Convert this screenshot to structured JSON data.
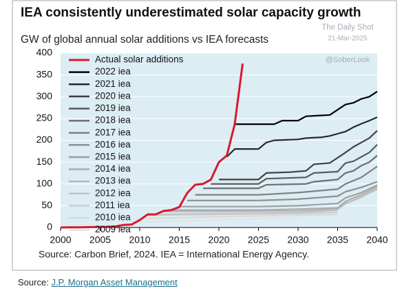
{
  "chart_data": {
    "type": "line",
    "title": "IEA consistently underestimated solar capacity growth",
    "subtitle": "GW of global annual solar additions vs IEA forecasts",
    "annotations": [
      "The Daily Shot",
      "21-Mar-2025",
      "@SoberLook"
    ],
    "source": "Source: Carbon Brief, 2024. IEA = International Energy Agency.",
    "xlim": [
      2000,
      2040
    ],
    "xticks": [
      2000,
      2005,
      2010,
      2015,
      2020,
      2025,
      2030,
      2035,
      2040
    ],
    "ylim": [
      0,
      400
    ],
    "yticks": [
      0,
      50,
      100,
      150,
      200,
      250,
      300,
      350,
      400
    ],
    "grid": true,
    "legend": "top-left",
    "series": [
      {
        "name": "Actual solar additions",
        "color": "#d7192e",
        "x": [
          2000,
          2001,
          2002,
          2003,
          2004,
          2005,
          2006,
          2007,
          2008,
          2009,
          2010,
          2011,
          2012,
          2013,
          2014,
          2015,
          2016,
          2017,
          2018,
          2019,
          2020,
          2021,
          2022,
          2023
        ],
        "values": [
          0,
          0.3,
          0.5,
          0.6,
          1,
          1.4,
          1.6,
          2.5,
          6,
          7,
          17,
          30,
          30,
          38,
          40,
          47,
          79,
          98,
          100,
          110,
          150,
          165,
          237,
          376
        ]
      },
      {
        "name": "2022 iea",
        "color": "#000000",
        "x": [
          2022,
          2027,
          2028,
          2030,
          2031,
          2033,
          2034,
          2035,
          2036,
          2037,
          2038,
          2039,
          2040
        ],
        "values": [
          237,
          237,
          245,
          245,
          255,
          257,
          258,
          270,
          282,
          286,
          295,
          300,
          312
        ]
      },
      {
        "name": "2021 iea",
        "color": "#262626",
        "x": [
          2021,
          2022,
          2025,
          2026,
          2027,
          2030,
          2031,
          2033,
          2034,
          2035,
          2036,
          2037,
          2038,
          2039,
          2040
        ],
        "values": [
          162,
          180,
          180,
          195,
          200,
          202,
          205,
          207,
          210,
          215,
          220,
          230,
          238,
          245,
          253
        ]
      },
      {
        "name": "2020 iea",
        "color": "#404040",
        "x": [
          2020,
          2025,
          2026,
          2029,
          2031,
          2032,
          2034,
          2035,
          2036,
          2037,
          2038,
          2039,
          2040
        ],
        "values": [
          110,
          110,
          125,
          127,
          130,
          145,
          148,
          160,
          172,
          185,
          195,
          205,
          222
        ]
      },
      {
        "name": "2019 iea",
        "color": "#595959",
        "x": [
          2019,
          2025,
          2026,
          2031,
          2032,
          2035,
          2036,
          2037,
          2038,
          2039,
          2040
        ],
        "values": [
          100,
          100,
          112,
          115,
          125,
          128,
          148,
          152,
          162,
          172,
          190
        ]
      },
      {
        "name": "2018 iea",
        "color": "#6e6e6e",
        "x": [
          2018,
          2025,
          2026,
          2031,
          2032,
          2035,
          2036,
          2037,
          2038,
          2039,
          2040
        ],
        "values": [
          90,
          90,
          98,
          100,
          105,
          110,
          125,
          130,
          142,
          150,
          165
        ]
      },
      {
        "name": "2017 iea",
        "color": "#808080",
        "x": [
          2017,
          2025,
          2030,
          2035,
          2036,
          2038,
          2040
        ],
        "values": [
          75,
          75,
          80,
          88,
          100,
          115,
          140
        ]
      },
      {
        "name": "2016 iea",
        "color": "#8f8f8f",
        "x": [
          2016,
          2025,
          2030,
          2035,
          2036,
          2038,
          2040
        ],
        "values": [
          62,
          62,
          65,
          72,
          82,
          92,
          105
        ]
      },
      {
        "name": "2015 iea",
        "color": "#9e9e9e",
        "x": [
          2015,
          2025,
          2030,
          2035,
          2036,
          2038,
          2040
        ],
        "values": [
          48,
          48,
          50,
          55,
          68,
          80,
          97
        ]
      },
      {
        "name": "2014 iea",
        "color": "#ababab",
        "x": [
          2014,
          2025,
          2030,
          2035,
          2036,
          2038,
          2040
        ],
        "values": [
          40,
          40,
          42,
          45,
          60,
          75,
          93
        ]
      },
      {
        "name": "2013 iea",
        "color": "#b8b8b8",
        "x": [
          2013,
          2020,
          2030,
          2035,
          2036,
          2038,
          2040
        ],
        "values": [
          37,
          37,
          38,
          42,
          55,
          70,
          88
        ]
      },
      {
        "name": "2012 iea",
        "color": "#c4c4c4",
        "x": [
          2012,
          2020,
          2030,
          2035
        ],
        "values": [
          30,
          32,
          34,
          40
        ]
      },
      {
        "name": "2011 iea",
        "color": "#cfcfcf",
        "x": [
          2011,
          2020,
          2030,
          2035
        ],
        "values": [
          28,
          30,
          32,
          35
        ]
      },
      {
        "name": "2010 iea",
        "color": "#d9d9d9",
        "x": [
          2010,
          2020,
          2030,
          2035
        ],
        "values": [
          20,
          25,
          28,
          30
        ]
      },
      {
        "name": "2009 iea",
        "color": "#e3e3e3",
        "x": [
          2009,
          2020,
          2030
        ],
        "values": [
          12,
          18,
          22
        ]
      }
    ]
  },
  "footer": {
    "label": "Source:",
    "link": "J.P. Morgan Asset Management"
  }
}
